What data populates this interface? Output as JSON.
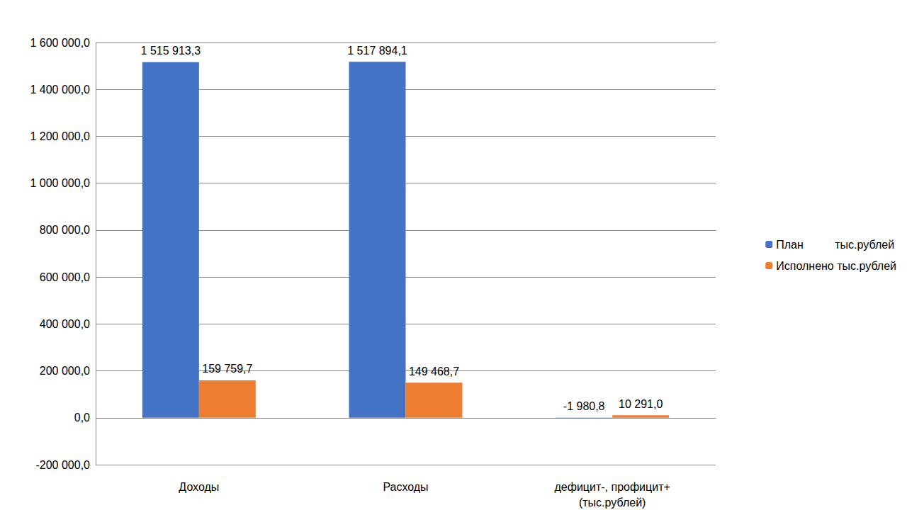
{
  "chart_data": {
    "type": "bar",
    "categories": [
      "Доходы",
      "Расходы",
      "дефицит-, профицит+\n(тыс.рублей)"
    ],
    "series": [
      {
        "name": "План          тыс.рублей",
        "color": "#4472c4",
        "values": [
          1515913.3,
          1517894.1,
          -1980.8
        ],
        "value_labels": [
          "1 515 913,3",
          "1 517 894,1",
          "-1 980,8"
        ]
      },
      {
        "name": "Исполнено тыс.рублей",
        "color": "#ed7d31",
        "values": [
          159759.7,
          149468.7,
          10291.0
        ],
        "value_labels": [
          "159 759,7",
          "149 468,7",
          "10 291,0"
        ]
      }
    ],
    "ylim": [
      -200000,
      1600000
    ],
    "yticks": [
      {
        "value": -200000,
        "label": "-200 000,0"
      },
      {
        "value": 0,
        "label": "0,0"
      },
      {
        "value": 200000,
        "label": "200 000,0"
      },
      {
        "value": 400000,
        "label": "400 000,0"
      },
      {
        "value": 600000,
        "label": "600 000,0"
      },
      {
        "value": 800000,
        "label": "800 000,0"
      },
      {
        "value": 1000000,
        "label": "1 000 000,0"
      },
      {
        "value": 1200000,
        "label": "1 200 000,0"
      },
      {
        "value": 1400000,
        "label": "1 400 000,0"
      },
      {
        "value": 1600000,
        "label": "1 600 000,0"
      }
    ],
    "grid": true,
    "legend": "right",
    "data_labels": true
  }
}
